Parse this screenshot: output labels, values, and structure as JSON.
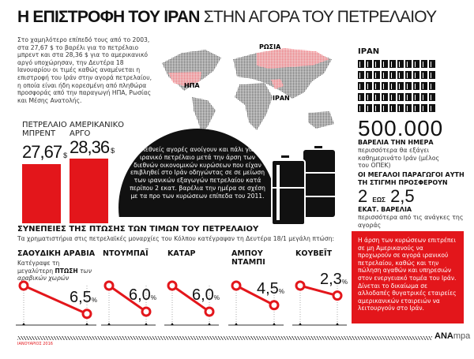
{
  "title": {
    "bold": "Η ΕΠΙΣΤΡΟΦΗ ΤΟΥ ΙΡΑΝ",
    "light": "ΣΤΗΝ ΑΓΟΡΑ ΤΟΥ ΠΕΤΡΕΛΑΙΟΥ"
  },
  "intro": "Στο χαμηλότερο επίπεδό τους από το 2003, στα 27,67 $ το βαρέλι για το πετρέλαιο μπρεντ και στα 28,36 $ για το αμερικανικό αργό υποχώρησαν, την Δευτέρα 18 Ιανουαρίου οι τιμές καθώς αναμένεται η επιστροφή του Ιράν στην αγορά πετρελαίου, η οποία είναι ήδη κορεσμένη από πληθώρα προσφοράς από την παραγωγή ΗΠΑ, Ρωσίας και Μέσης Ανατολής.",
  "map": {
    "labels": {
      "usa": "ΗΠΑ",
      "russia": "ΡΩΣΙΑ",
      "iran": "ΙΡΑΝ"
    },
    "highlight_color": "#f07a80",
    "land_color": "#6b6b6b"
  },
  "iran_panel": {
    "label": "ΙΡΑΝ",
    "barrel_icons": 50,
    "big_number": "500.000",
    "unit": "ΒΑΡΕΛΙΑ ΤΗΝ ΗΜΕΡΑ",
    "unit_desc": "περισσότερα θα εξάγει καθημερινάτο Ιράν (μέλος του ΟΠΕΚ)",
    "producers_heading": "ΟΙ ΜΕΓΑΛΟΙ ΠΑΡΑΓΩΓΟΙ ΑΥΤΗ ΤΗ ΣΤΙΓΜΗ ΠΡΟΣΦΕΡΟΥΝ",
    "range_low": "2",
    "range_sep": "ΕΩΣ",
    "range_high": "2,5",
    "range_unit": "ΕΚΑΤ. ΒΑΡΕΛΙΑ",
    "range_desc": "περισσότερα από τις ανάγκες της αγοράς"
  },
  "prices": [
    {
      "label": "ΠΕΤΡΕΛΑΙΟ ΜΠΡΕΝΤ",
      "value": "27,67",
      "currency": "$"
    },
    {
      "label": "ΑΜΕΡΙΚΑΝΙΚΟ ΑΡΓΟ",
      "value": "28,36",
      "currency": "$"
    }
  ],
  "circle_text": "Οι διεθνείς αγορές ανοίγουν και πάλι για το ιρανικό πετρέλαιο μετά την άρση των διεθνών οικονομικών κυρώσεων που είχαν επιβληθεί στο Ιράν οδηγώντας σε σε μείωση των ιρανικών εξαγωγών πετρελαίου κατά περίπου 2 εκατ. βαρέλια την ημέρα σε σχέση με τα προ των κυρώσεων επίπεδα του 2011.",
  "section": {
    "heading": "ΣΥΝΕΠΕΙΕΣ ΤΗΣ ΠΤΩΣΗΣ ΤΩΝ ΤΙΜΩΝ ΤΟΥ ΠΕΤΡΕΛΑΙΟΥ",
    "subtitle": "Τα χρηματιστήρια στις πετρελαϊκές μοναρχίες του Κόλπου κατέγραψαν τη Δευτέρα 18/1 μεγάλη πτώση:"
  },
  "markets": [
    {
      "name": "ΣΑΟΥΔΙΚΗ ΑΡΑΒΙΑ",
      "drop": 6.5,
      "label": "6,5",
      "unit": "%",
      "note_pre": "Κατέγραψε τη μεγαλύτερη",
      "note_bold": "ΠΤΩΣΗ",
      "note_post": "των αραβικών χωρών"
    },
    {
      "name": "ΝΤΟΥΜΠΑΪ",
      "drop": 6.0,
      "label": "6,0",
      "unit": "%"
    },
    {
      "name": "ΚΑΤΑΡ",
      "drop": 6.0,
      "label": "6,0",
      "unit": "%"
    },
    {
      "name": "ΑΜΠΟΥ ΝΤΑΜΠΙ",
      "drop": 4.5,
      "label": "4,5",
      "unit": "%"
    },
    {
      "name": "ΚΟΥΒΕΪΤ",
      "drop": 2.3,
      "label": "2,3",
      "unit": "%"
    }
  ],
  "red_box": "Η άρση των κυρώσεων επιτρέπει σε μη Αμερικανούς να προχωρούν σε αγορά ιρανικού πετρελαίου, καθώς και την πώληση αγαθών και υπηρεσιών στον ενεργειακό τομέα του Ιράν. Δίνεται το δικαίωμα σε αλλοδαπές θυγατρικές εταιρείες αμερικανικών εταιρειών να λειτουργούν στο Ιράν.",
  "footer": {
    "credit": "ΙΑΝΟΥΑΡΙΟΣ 2016",
    "logo_bold": "ΑΝΑ",
    "logo_light": "mpa"
  },
  "colors": {
    "accent": "#e3161b",
    "dark": "#111111"
  }
}
